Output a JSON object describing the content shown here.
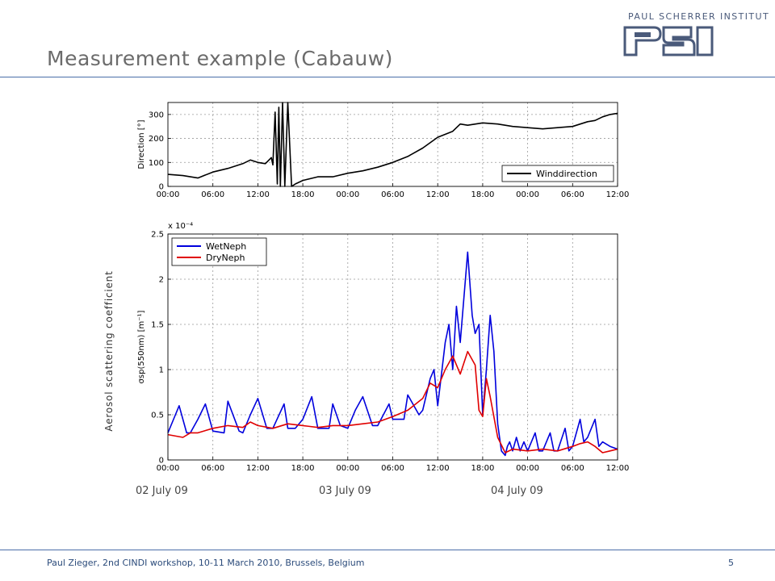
{
  "slide": {
    "title": "Measurement example (Cabauw)",
    "footer": "Paul Zieger, 2nd CINDI workshop, 10-11 March 2010, Brussels, Belgium",
    "page_number": "5",
    "side_label": "Aerosol scattering coefficient",
    "day_labels": [
      "02 July 09",
      "03 July 09",
      "04 July 09"
    ],
    "logo": {
      "institute": "PAUL SCHERRER INSTITUT",
      "mark": "PSI"
    },
    "colors": {
      "title": "#6b6b6b",
      "rule": "#4a6ea8",
      "wetneph": "#0000dd",
      "dryneph": "#e00000",
      "wind": "#000000"
    }
  },
  "chart_data": [
    {
      "type": "line",
      "ylabel": "Direction [°]",
      "ylim": [
        0,
        350
      ],
      "yticks": [
        "0",
        "100",
        "200",
        "300"
      ],
      "xticks": [
        "00:00",
        "06:00",
        "12:00",
        "18:00",
        "00:00",
        "06:00",
        "12:00",
        "18:00",
        "00:00",
        "06:00",
        "12:00"
      ],
      "xlim_hours": [
        0,
        60
      ],
      "grid": true,
      "legend_position": "bottom-right",
      "series": [
        {
          "name": "Winddirection",
          "color": "#000000",
          "x": [
            0,
            2,
            4,
            6,
            8,
            10,
            11,
            12,
            13,
            13.8,
            14,
            14.3,
            14.6,
            14.8,
            15,
            15.3,
            15.6,
            16,
            16.5,
            17,
            18,
            20,
            22,
            24,
            26,
            28,
            30,
            32,
            34,
            36,
            38,
            39,
            40,
            42,
            44,
            46,
            48,
            50,
            52,
            54,
            56,
            57,
            58,
            59,
            60
          ],
          "values": [
            50,
            45,
            35,
            60,
            75,
            95,
            110,
            100,
            95,
            120,
            90,
            310,
            10,
            330,
            0,
            350,
            0,
            350,
            0,
            10,
            25,
            40,
            40,
            55,
            65,
            80,
            100,
            125,
            160,
            205,
            230,
            260,
            255,
            265,
            260,
            250,
            245,
            240,
            245,
            250,
            270,
            275,
            290,
            300,
            305
          ]
        }
      ]
    },
    {
      "type": "line",
      "ylabel": "σsp(550nm) [m⁻¹]",
      "y_multiplier": "x 10⁻⁴",
      "ylim": [
        0,
        2.5
      ],
      "yticks": [
        "0",
        "0.5",
        "1",
        "1.5",
        "2",
        "2.5"
      ],
      "xticks": [
        "00:00",
        "06:00",
        "12:00",
        "18:00",
        "00:00",
        "06:00",
        "12:00",
        "18:00",
        "00:00",
        "06:00",
        "12:00"
      ],
      "xlim_hours": [
        0,
        60
      ],
      "grid": true,
      "legend_position": "top-left",
      "series": [
        {
          "name": "WetNeph",
          "color": "#0000dd",
          "x": [
            0,
            1,
            1.5,
            2.5,
            3,
            4,
            5,
            6,
            7.5,
            8,
            9.5,
            10,
            11,
            12,
            13.2,
            14,
            15.5,
            16,
            17,
            18,
            19.2,
            20,
            21.5,
            22,
            23,
            24,
            25,
            26,
            27.3,
            28,
            29.5,
            30,
            31.5,
            32,
            33.5,
            34,
            35,
            35.5,
            36,
            37,
            37.5,
            38,
            38.5,
            39,
            40,
            40.6,
            41,
            41.5,
            42,
            42.5,
            43,
            43.5,
            44,
            44.5,
            45,
            45.3,
            45.6,
            46,
            46.5,
            47,
            47.5,
            48,
            49,
            49.5,
            50,
            51,
            51.5,
            52,
            53,
            53.5,
            54,
            55,
            55.5,
            56,
            57,
            57.5,
            58,
            59,
            60
          ],
          "values": [
            0.3,
            0.5,
            0.6,
            0.3,
            0.3,
            0.45,
            0.62,
            0.32,
            0.3,
            0.65,
            0.32,
            0.3,
            0.5,
            0.68,
            0.35,
            0.35,
            0.62,
            0.35,
            0.35,
            0.45,
            0.7,
            0.35,
            0.35,
            0.62,
            0.38,
            0.35,
            0.55,
            0.7,
            0.38,
            0.38,
            0.62,
            0.45,
            0.45,
            0.72,
            0.5,
            0.55,
            0.9,
            1.0,
            0.6,
            1.3,
            1.5,
            1.0,
            1.7,
            1.3,
            2.3,
            1.6,
            1.4,
            1.5,
            0.5,
            1.0,
            1.6,
            1.2,
            0.4,
            0.1,
            0.05,
            0.15,
            0.2,
            0.1,
            0.25,
            0.1,
            0.2,
            0.1,
            0.3,
            0.1,
            0.1,
            0.3,
            0.1,
            0.1,
            0.35,
            0.1,
            0.15,
            0.45,
            0.2,
            0.25,
            0.45,
            0.15,
            0.2,
            0.15,
            0.12
          ]
        },
        {
          "name": "DryNeph",
          "color": "#e00000",
          "x": [
            0,
            2,
            3,
            4,
            6,
            8,
            10,
            11,
            12,
            14,
            16,
            18,
            20,
            22,
            24,
            26,
            28,
            30,
            32,
            34,
            35,
            36,
            37,
            38,
            39,
            40,
            41,
            41.5,
            42,
            42.5,
            43,
            44,
            45,
            46,
            48,
            50,
            52,
            54,
            55,
            56,
            57,
            58,
            59,
            60
          ],
          "values": [
            0.28,
            0.25,
            0.3,
            0.3,
            0.35,
            0.38,
            0.36,
            0.42,
            0.38,
            0.35,
            0.4,
            0.38,
            0.36,
            0.38,
            0.38,
            0.4,
            0.42,
            0.48,
            0.55,
            0.68,
            0.85,
            0.8,
            1.0,
            1.15,
            0.95,
            1.2,
            1.05,
            0.55,
            0.48,
            0.9,
            0.7,
            0.25,
            0.08,
            0.12,
            0.1,
            0.12,
            0.1,
            0.15,
            0.18,
            0.2,
            0.15,
            0.08,
            0.1,
            0.12
          ]
        }
      ]
    }
  ]
}
